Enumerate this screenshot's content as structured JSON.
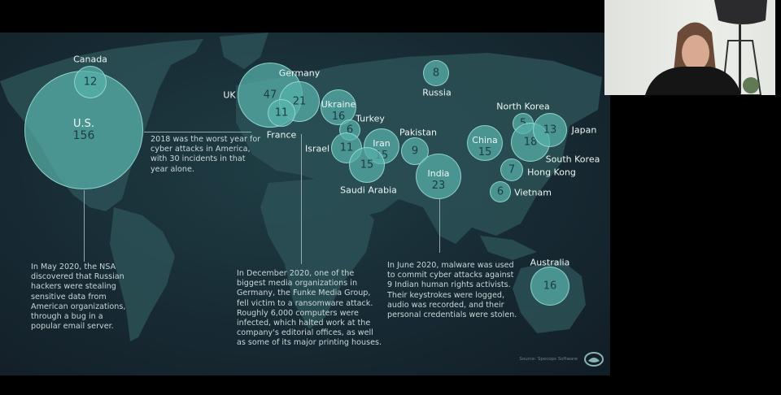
{
  "bubbles": [
    {
      "country": "U.S.",
      "value": "156"
    },
    {
      "country": "Canada",
      "value": "12"
    },
    {
      "country": "UK",
      "value": "47"
    },
    {
      "country": "Germany",
      "value": "21"
    },
    {
      "country": "France",
      "value": "11"
    },
    {
      "country": "Ukraine",
      "value": "16"
    },
    {
      "country": "Turkey",
      "value": "6"
    },
    {
      "country": "Israel",
      "value": "11"
    },
    {
      "country": "Iran",
      "value": "15"
    },
    {
      "country": "Saudi Arabia",
      "value": "15"
    },
    {
      "country": "Pakistan",
      "value": "9"
    },
    {
      "country": "India",
      "value": "23"
    },
    {
      "country": "Russia",
      "value": "8"
    },
    {
      "country": "China",
      "value": "15"
    },
    {
      "country": "North Korea",
      "value": "5"
    },
    {
      "country": "South Korea",
      "value": "18"
    },
    {
      "country": "Japan",
      "value": "13"
    },
    {
      "country": "Hong Kong",
      "value": "7"
    },
    {
      "country": "Vietnam",
      "value": "6"
    },
    {
      "country": "Australia",
      "value": "16"
    }
  ],
  "notes": {
    "us_2018": "2018 was the worst year for cyber attacks in America, with 30 incidents in that year alone.",
    "nsa": "In May 2020, the NSA discovered that Russian hackers were stealing sensitive data from American organizations, through a bug in a popular email server.",
    "germany": "In December 2020, one of the biggest media organizations in Germany, the Funke Media Group, fell victim to a ransomware attack. Roughly 6,000 computers were infected, which halted work at the company's editorial offices, as well as some of its major printing houses.",
    "india": "In June 2020, malware was used to commit cyber attacks against 9 Indian human rights activists. Their keystrokes were logged, audio was recorded, and their personal credentials were stolen."
  },
  "source": "Source: Specops Software",
  "colors": {
    "bubble": "#58b2aa",
    "background": "#172a33",
    "land": "#2c5358"
  }
}
